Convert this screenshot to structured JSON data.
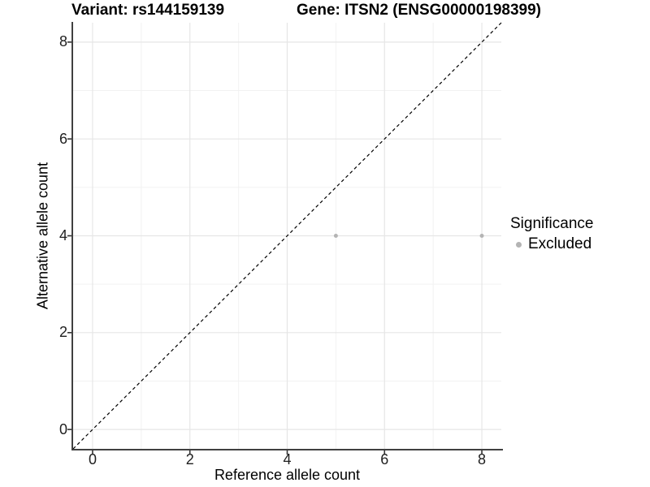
{
  "header": {
    "title_variant": "Variant: rs144159139",
    "title_gene": "Gene: ITSN2 (ENSG00000198399)"
  },
  "chart_data": {
    "type": "scatter",
    "title_left": "Variant: rs144159139",
    "title_right": "Gene: ITSN2 (ENSG00000198399)",
    "xlabel": "Reference allele count",
    "ylabel": "Alternative allele count",
    "xlim": [
      -0.4,
      8.4
    ],
    "ylim": [
      -0.4,
      8.4
    ],
    "x_ticks": [
      0,
      2,
      4,
      6,
      8
    ],
    "y_ticks": [
      0,
      2,
      4,
      6,
      8
    ],
    "minor_gridlines_x": [
      1,
      3,
      5,
      7
    ],
    "minor_gridlines_y": [
      1,
      3,
      5,
      7
    ],
    "grid": true,
    "points": [
      {
        "x": 5,
        "y": 4,
        "significance": "Excluded"
      },
      {
        "x": 8,
        "y": 4,
        "significance": "Excluded"
      }
    ],
    "reference_line": {
      "kind": "identity",
      "slope": 1,
      "intercept": 0,
      "style": "dashed",
      "color": "#000000"
    },
    "legend": {
      "title": "Significance",
      "position": "right",
      "items": [
        {
          "label": "Excluded",
          "color": "#b4b4b4"
        }
      ]
    },
    "colors": {
      "point": "#b4b4b4",
      "major_grid": "#e6e6e6",
      "minor_grid": "#f2f2f2",
      "axis_line": "#404040",
      "tick_mark": "#333333",
      "background": "#ffffff"
    }
  }
}
